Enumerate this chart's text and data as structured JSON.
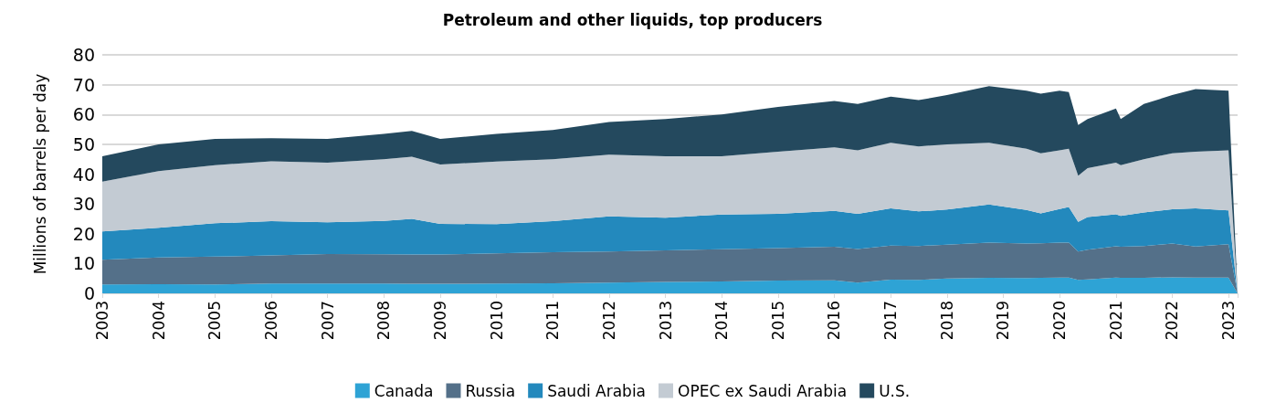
{
  "chart_data": {
    "type": "area",
    "title": "Petroleum and other liquids, top producers",
    "ylabel": "Millions of barrels per day",
    "stacked": true,
    "grid": "y",
    "legend": "bottom",
    "x": [
      "2003-01",
      "2004-01",
      "2005-01",
      "2006-01",
      "2007-01",
      "2008-01",
      "2008-07",
      "2009-01",
      "2010-01",
      "2011-01",
      "2012-01",
      "2013-01",
      "2014-01",
      "2015-01",
      "2016-01",
      "2016-06",
      "2017-01",
      "2017-07",
      "2018-01",
      "2018-10",
      "2019-06",
      "2019-09",
      "2020-01",
      "2020-03",
      "2020-05",
      "2020-07",
      "2021-01",
      "2021-02",
      "2021-07",
      "2022-01",
      "2022-06",
      "2023-01",
      "2023-03"
    ],
    "series": [
      {
        "name": "Canada",
        "color": "#2ea3d5",
        "values": [
          3.0,
          3.1,
          3.0,
          3.3,
          3.3,
          3.3,
          3.2,
          3.2,
          3.3,
          3.4,
          3.6,
          3.8,
          4.0,
          4.3,
          4.4,
          3.6,
          4.6,
          4.5,
          5.0,
          5.2,
          5.1,
          5.2,
          5.3,
          5.3,
          4.5,
          4.7,
          5.3,
          5.2,
          5.2,
          5.4,
          5.3,
          5.3,
          0
        ]
      },
      {
        "name": "Russia",
        "color": "#547089",
        "values": [
          8.3,
          8.9,
          9.3,
          9.4,
          9.9,
          9.8,
          9.8,
          9.8,
          10.1,
          10.4,
          10.4,
          10.6,
          10.8,
          10.9,
          11.2,
          11.3,
          11.4,
          11.4,
          11.3,
          11.8,
          11.6,
          11.6,
          11.7,
          11.7,
          9.5,
          9.9,
          10.5,
          10.4,
          10.7,
          11.3,
          10.4,
          11.2,
          0
        ]
      },
      {
        "name": "Saudi Arabia",
        "color": "#2389bd",
        "values": [
          9.5,
          10.0,
          11.2,
          11.5,
          10.6,
          11.2,
          12.0,
          10.3,
          9.8,
          10.4,
          11.8,
          11.0,
          11.6,
          11.5,
          12.1,
          11.8,
          12.5,
          11.6,
          11.8,
          12.8,
          11.3,
          10.0,
          11.3,
          12.0,
          10.0,
          11.0,
          10.7,
          10.4,
          11.2,
          11.5,
          12.8,
          11.3,
          0
        ]
      },
      {
        "name": "OPEC ex Saudi Arabia",
        "color": "#c3cbd3",
        "values": [
          16.7,
          19.0,
          19.5,
          20.1,
          20.0,
          20.7,
          20.8,
          19.9,
          21.0,
          20.8,
          20.7,
          20.6,
          19.6,
          20.8,
          21.3,
          21.3,
          22.0,
          21.8,
          21.9,
          20.7,
          20.5,
          20.2,
          19.7,
          19.5,
          15.5,
          16.4,
          17.3,
          17.0,
          17.9,
          18.8,
          19.0,
          20.2,
          0
        ]
      },
      {
        "name": "U.S.",
        "color": "#24495e",
        "values": [
          8.5,
          9.0,
          8.8,
          7.7,
          8.0,
          8.5,
          8.7,
          8.6,
          9.3,
          9.8,
          11.0,
          12.5,
          14.0,
          15.0,
          15.5,
          15.5,
          15.5,
          15.5,
          16.5,
          19.0,
          19.5,
          20.0,
          20.0,
          19.0,
          17.0,
          16.5,
          18.2,
          15.5,
          18.5,
          19.5,
          21.0,
          20.0,
          0
        ]
      }
    ],
    "xlim": [
      "2003-01",
      "2023-03"
    ],
    "xticks": [
      "2003",
      "2004",
      "2005",
      "2006",
      "2007",
      "2008",
      "2009",
      "2010",
      "2011",
      "2012",
      "2013",
      "2014",
      "2015",
      "2016",
      "2017",
      "2018",
      "2019",
      "2020",
      "2021",
      "2022",
      "2023"
    ],
    "ylim": [
      0,
      80
    ],
    "yticks": [
      0,
      10,
      20,
      30,
      40,
      50,
      60,
      70,
      80
    ]
  }
}
